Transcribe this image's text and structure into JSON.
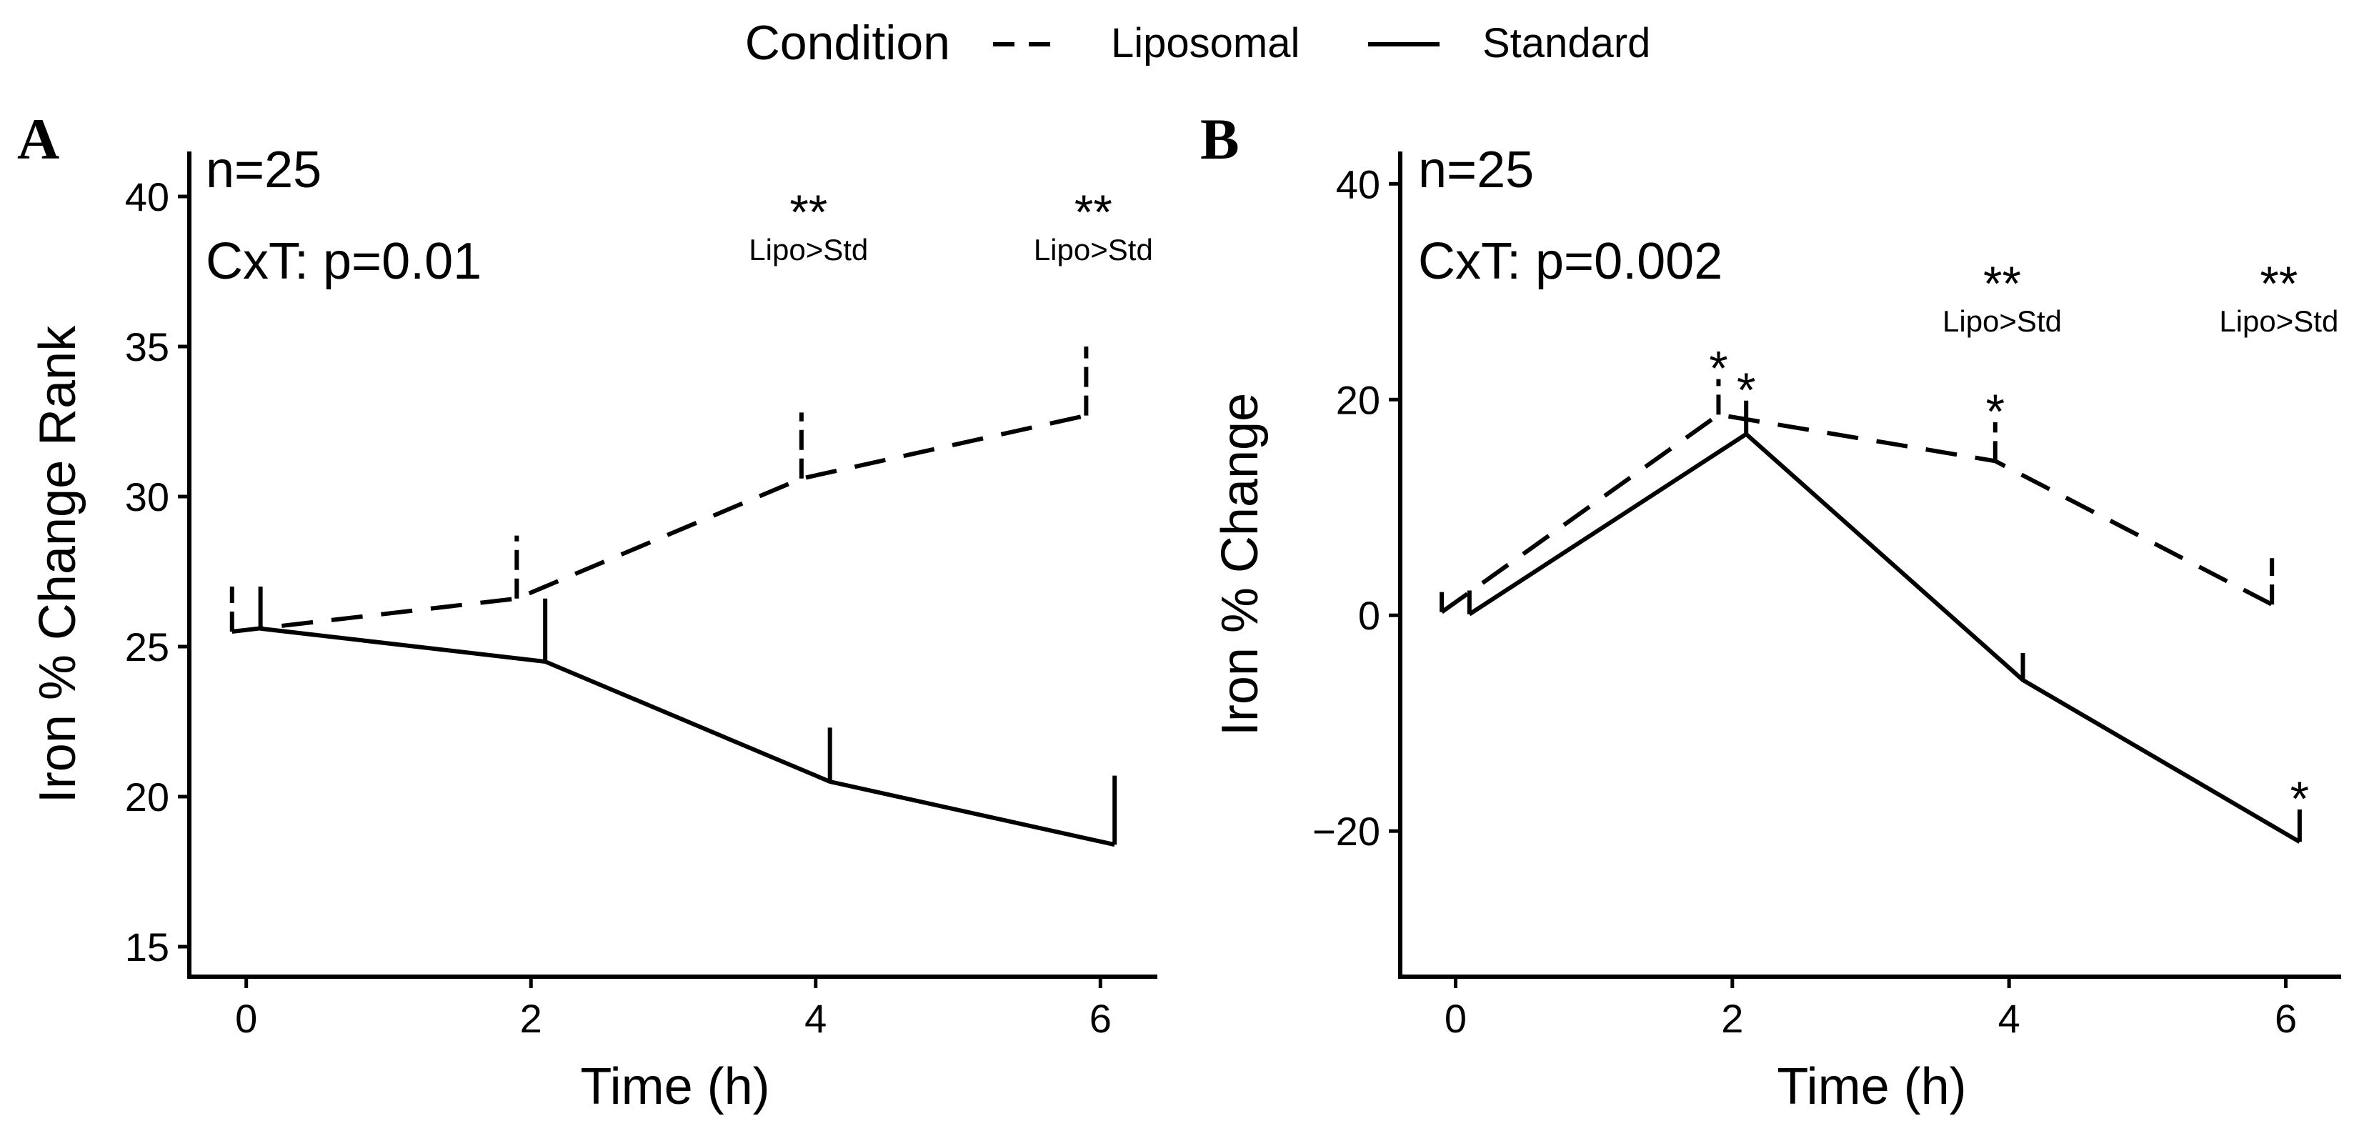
{
  "legend": {
    "title": "Condition",
    "items": [
      {
        "label": "Liposomal",
        "style": "dashed"
      },
      {
        "label": "Standard",
        "style": "solid"
      }
    ]
  },
  "colors": {
    "line": "#000000",
    "background": "#ffffff"
  },
  "chart_data": [
    {
      "type": "line",
      "panel": "A",
      "xlabel": "Time (h)",
      "ylabel": "Iron % Change Rank",
      "xlim": [
        -0.4,
        6.4
      ],
      "ylim": [
        14,
        41.5
      ],
      "xticks": [
        "0",
        "2",
        "4",
        "6"
      ],
      "yticks": [
        "15",
        "20",
        "25",
        "30",
        "35",
        "40"
      ],
      "annotations": {
        "n": "n=25",
        "cxt": "CxT: p=0.01"
      },
      "sig_labels": [
        {
          "x": 4,
          "stars": "**",
          "label": "Lipo>Std"
        },
        {
          "x": 6,
          "stars": "**",
          "label": "Lipo>Std"
        }
      ],
      "point_stars": [],
      "series": [
        {
          "name": "Liposomal",
          "style": "dashed",
          "x": [
            -0.1,
            1.9,
            3.9,
            5.9
          ],
          "y": [
            25.5,
            26.6,
            30.6,
            32.7
          ],
          "error_upper": [
            27.0,
            28.7,
            32.8,
            35.0
          ]
        },
        {
          "name": "Standard",
          "style": "solid",
          "x": [
            0.1,
            2.1,
            4.1,
            6.1
          ],
          "y": [
            25.6,
            24.5,
            20.5,
            18.4
          ],
          "error_upper": [
            27.0,
            26.6,
            22.3,
            20.7
          ]
        }
      ]
    },
    {
      "type": "line",
      "panel": "B",
      "xlabel": "Time (h)",
      "ylabel": "Iron % Change",
      "xlim": [
        -0.4,
        6.4
      ],
      "ylim": [
        -33.5,
        43
      ],
      "xticks": [
        "0",
        "2",
        "4",
        "6"
      ],
      "yticks": [
        "−20",
        "0",
        "20",
        "40"
      ],
      "ytick_values": [
        -20,
        0,
        20,
        40
      ],
      "annotations": {
        "n": "n=25",
        "cxt": "CxT: p=0.002"
      },
      "sig_labels": [
        {
          "x": 4,
          "stars": "**",
          "label": "Lipo>Std"
        },
        {
          "x": 6,
          "stars": "**",
          "label": "Lipo>Std"
        }
      ],
      "point_stars": [
        {
          "series": "Liposomal",
          "x": 1.9,
          "text": "*"
        },
        {
          "series": "Standard",
          "x": 2.1,
          "text": "*"
        },
        {
          "series": "Liposomal",
          "x": 3.9,
          "text": "*"
        },
        {
          "series": "Standard",
          "x": 6.1,
          "text": "*"
        }
      ],
      "series": [
        {
          "name": "Liposomal",
          "style": "dashed",
          "x": [
            -0.1,
            1.9,
            3.9,
            5.9
          ],
          "y": [
            0.3,
            18.6,
            14.3,
            1.0
          ],
          "error_upper": [
            2.4,
            21.9,
            17.9,
            5.3
          ]
        },
        {
          "name": "Standard",
          "style": "solid",
          "x": [
            0.1,
            2.1,
            4.1,
            6.1
          ],
          "y": [
            0.1,
            16.8,
            -6.0,
            -21.0
          ],
          "error_upper": [
            2.3,
            19.9,
            -3.5,
            -18.0
          ]
        }
      ]
    }
  ]
}
